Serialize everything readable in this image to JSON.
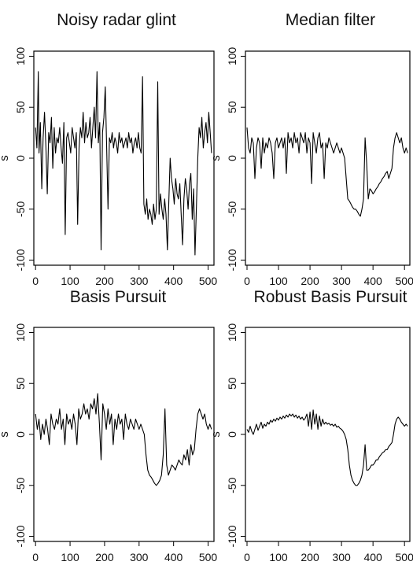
{
  "chart_data": [
    {
      "type": "line",
      "title": "Noisy radar glint",
      "xlabel": "",
      "ylabel": "s",
      "xlim": [
        -5,
        517
      ],
      "ylim": [
        -105,
        105
      ],
      "xticks": [
        0,
        100,
        200,
        300,
        400,
        500
      ],
      "yticks": [
        -100,
        -50,
        0,
        50,
        100
      ],
      "series": [
        {
          "x": [
            0,
            4,
            8,
            10,
            14,
            18,
            22,
            26,
            30,
            34,
            38,
            42,
            46,
            50,
            54,
            58,
            62,
            66,
            70,
            74,
            78,
            82,
            86,
            90,
            94,
            98,
            102,
            106,
            110,
            114,
            118,
            122,
            126,
            130,
            134,
            138,
            142,
            146,
            150,
            154,
            158,
            162,
            166,
            170,
            174,
            178,
            182,
            186,
            190,
            194,
            198,
            202,
            206,
            210,
            214,
            218,
            222,
            226,
            230,
            234,
            238,
            242,
            246,
            250,
            254,
            258,
            262,
            266,
            270,
            274,
            278,
            282,
            286,
            290,
            294,
            298,
            302,
            306,
            310,
            314,
            318,
            322,
            326,
            330,
            334,
            338,
            342,
            346,
            350,
            354,
            358,
            362,
            366,
            370,
            374,
            378,
            382,
            386,
            390,
            394,
            398,
            402,
            406,
            410,
            414,
            418,
            422,
            426,
            430,
            434,
            438,
            442,
            446,
            450,
            454,
            458,
            462,
            466,
            470,
            474,
            478,
            482,
            486,
            490,
            494,
            498,
            502,
            506,
            510
          ],
          "y": [
            30,
            10,
            85,
            5,
            35,
            -30,
            20,
            45,
            10,
            -35,
            25,
            15,
            40,
            -10,
            30,
            5,
            20,
            15,
            30,
            10,
            -5,
            35,
            -75,
            20,
            25,
            15,
            5,
            30,
            20,
            10,
            25,
            -65,
            10,
            30,
            20,
            45,
            15,
            35,
            20,
            25,
            40,
            10,
            30,
            50,
            20,
            85,
            15,
            35,
            -90,
            25,
            40,
            70,
            10,
            -50,
            20,
            15,
            25,
            10,
            20,
            15,
            5,
            25,
            15,
            20,
            10,
            15,
            20,
            10,
            25,
            15,
            20,
            5,
            15,
            20,
            10,
            25,
            10,
            5,
            80,
            -45,
            -55,
            -40,
            -60,
            -50,
            -55,
            -65,
            -45,
            -60,
            -50,
            75,
            -55,
            -35,
            -50,
            -60,
            -40,
            -55,
            -90,
            -45,
            0,
            -20,
            -30,
            -45,
            -20,
            -35,
            -40,
            -25,
            -55,
            -85,
            -40,
            -20,
            -30,
            -50,
            -25,
            -15,
            -60,
            -30,
            -95,
            -50,
            0,
            30,
            20,
            40,
            10,
            25,
            35,
            15,
            45,
            25,
            5
          ]
        }
      ]
    },
    {
      "type": "line",
      "title": "Median filter",
      "xlabel": "",
      "ylabel": "s",
      "xlim": [
        -5,
        517
      ],
      "ylim": [
        -105,
        105
      ],
      "xticks": [
        0,
        100,
        200,
        300,
        400,
        500
      ],
      "yticks": [
        -100,
        -50,
        0,
        50,
        100
      ],
      "series": [
        {
          "x": [
            0,
            5,
            10,
            15,
            20,
            25,
            30,
            35,
            40,
            45,
            50,
            55,
            60,
            65,
            70,
            75,
            80,
            85,
            90,
            95,
            100,
            105,
            110,
            115,
            120,
            125,
            130,
            135,
            140,
            145,
            150,
            155,
            160,
            165,
            170,
            175,
            180,
            185,
            190,
            195,
            200,
            205,
            210,
            215,
            220,
            225,
            230,
            235,
            240,
            245,
            250,
            255,
            260,
            265,
            270,
            275,
            280,
            285,
            290,
            295,
            300,
            305,
            310,
            315,
            320,
            325,
            330,
            335,
            340,
            345,
            350,
            355,
            360,
            365,
            370,
            375,
            380,
            385,
            390,
            395,
            400,
            405,
            410,
            415,
            420,
            425,
            430,
            435,
            440,
            445,
            450,
            455,
            460,
            465,
            470,
            475,
            480,
            485,
            490,
            495,
            500,
            505,
            510
          ],
          "y": [
            30,
            10,
            5,
            20,
            15,
            -20,
            10,
            20,
            15,
            -10,
            20,
            5,
            15,
            10,
            20,
            15,
            5,
            -20,
            15,
            20,
            10,
            15,
            20,
            10,
            20,
            -15,
            25,
            15,
            20,
            10,
            25,
            15,
            20,
            5,
            25,
            20,
            15,
            25,
            5,
            20,
            15,
            -25,
            25,
            15,
            5,
            20,
            25,
            10,
            15,
            -20,
            15,
            10,
            20,
            15,
            10,
            5,
            10,
            15,
            10,
            5,
            10,
            5,
            0,
            -20,
            -40,
            -42,
            -45,
            -48,
            -50,
            -50,
            -52,
            -55,
            -57,
            -50,
            -40,
            20,
            -5,
            -40,
            -30,
            -32,
            -35,
            -33,
            -30,
            -28,
            -25,
            -23,
            -20,
            -18,
            -15,
            -13,
            -20,
            -15,
            -10,
            10,
            20,
            25,
            20,
            15,
            20,
            10,
            5,
            10,
            5
          ]
        }
      ]
    },
    {
      "type": "line",
      "title": "Basis Pursuit",
      "xlabel": "",
      "ylabel": "s",
      "xlim": [
        -5,
        517
      ],
      "ylim": [
        -105,
        105
      ],
      "xticks": [
        0,
        100,
        200,
        300,
        400,
        500
      ],
      "yticks": [
        -100,
        -50,
        0,
        50,
        100
      ],
      "series": [
        {
          "x": [
            0,
            5,
            10,
            15,
            20,
            25,
            30,
            35,
            40,
            45,
            50,
            55,
            60,
            65,
            70,
            75,
            80,
            85,
            90,
            95,
            100,
            105,
            110,
            115,
            120,
            125,
            130,
            135,
            140,
            145,
            150,
            155,
            160,
            165,
            170,
            175,
            180,
            185,
            190,
            195,
            200,
            205,
            210,
            215,
            220,
            225,
            230,
            235,
            240,
            245,
            250,
            255,
            260,
            265,
            270,
            275,
            280,
            285,
            290,
            295,
            300,
            305,
            310,
            315,
            320,
            325,
            330,
            335,
            340,
            345,
            350,
            355,
            360,
            365,
            370,
            375,
            380,
            385,
            390,
            395,
            400,
            405,
            410,
            415,
            420,
            425,
            430,
            435,
            440,
            445,
            450,
            455,
            460,
            465,
            470,
            475,
            480,
            485,
            490,
            495,
            500,
            505,
            510
          ],
          "y": [
            20,
            5,
            15,
            -5,
            10,
            0,
            15,
            5,
            -10,
            20,
            10,
            5,
            15,
            10,
            25,
            5,
            15,
            -10,
            20,
            10,
            15,
            5,
            20,
            10,
            -10,
            25,
            15,
            20,
            30,
            20,
            25,
            15,
            30,
            25,
            35,
            20,
            40,
            10,
            -25,
            30,
            20,
            5,
            25,
            10,
            20,
            -10,
            15,
            5,
            20,
            10,
            15,
            -5,
            20,
            10,
            5,
            15,
            10,
            5,
            15,
            10,
            5,
            10,
            5,
            0,
            -20,
            -35,
            -40,
            -42,
            -45,
            -48,
            -50,
            -48,
            -45,
            -40,
            -20,
            25,
            -30,
            -40,
            -35,
            -30,
            -32,
            -35,
            -30,
            -25,
            -28,
            -30,
            -20,
            -25,
            -15,
            -30,
            -10,
            -20,
            -15,
            5,
            20,
            25,
            20,
            15,
            20,
            10,
            5,
            10,
            5
          ]
        }
      ]
    },
    {
      "type": "line",
      "title": "Robust Basis Pursuit",
      "xlabel": "",
      "ylabel": "s",
      "xlim": [
        -5,
        517
      ],
      "ylim": [
        -105,
        105
      ],
      "xticks": [
        0,
        100,
        200,
        300,
        400,
        500
      ],
      "yticks": [
        -100,
        -50,
        0,
        50,
        100
      ],
      "series": [
        {
          "x": [
            0,
            5,
            10,
            15,
            20,
            25,
            30,
            35,
            40,
            45,
            50,
            55,
            60,
            65,
            70,
            75,
            80,
            85,
            90,
            95,
            100,
            105,
            110,
            115,
            120,
            125,
            130,
            135,
            140,
            145,
            150,
            155,
            160,
            165,
            170,
            175,
            180,
            185,
            190,
            195,
            200,
            205,
            210,
            215,
            220,
            225,
            230,
            235,
            240,
            245,
            250,
            255,
            260,
            265,
            270,
            275,
            280,
            285,
            290,
            295,
            300,
            305,
            310,
            315,
            320,
            325,
            330,
            335,
            340,
            345,
            350,
            355,
            360,
            365,
            370,
            375,
            380,
            385,
            390,
            395,
            400,
            405,
            410,
            415,
            420,
            425,
            430,
            435,
            440,
            445,
            450,
            455,
            460,
            465,
            470,
            475,
            480,
            485,
            490,
            495,
            500,
            505,
            510
          ],
          "y": [
            5,
            2,
            8,
            3,
            0,
            5,
            10,
            4,
            8,
            12,
            6,
            10,
            8,
            12,
            10,
            14,
            12,
            15,
            13,
            16,
            14,
            17,
            15,
            18,
            16,
            19,
            17,
            20,
            18,
            20,
            17,
            19,
            16,
            18,
            15,
            17,
            14,
            16,
            20,
            8,
            22,
            5,
            24,
            10,
            20,
            5,
            18,
            8,
            15,
            10,
            12,
            10,
            11,
            9,
            10,
            8,
            10,
            7,
            8,
            6,
            5,
            3,
            0,
            -5,
            -15,
            -30,
            -40,
            -45,
            -48,
            -50,
            -50,
            -48,
            -45,
            -40,
            -30,
            -10,
            -35,
            -35,
            -33,
            -30,
            -30,
            -28,
            -25,
            -25,
            -22,
            -20,
            -18,
            -17,
            -15,
            -15,
            -12,
            -10,
            -8,
            0,
            10,
            15,
            17,
            15,
            12,
            10,
            8,
            10,
            8
          ]
        }
      ]
    }
  ]
}
